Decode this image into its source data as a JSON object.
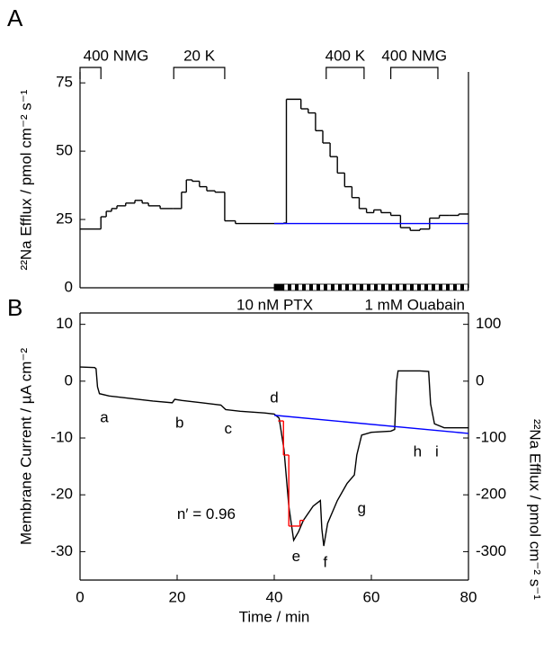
{
  "chart_data": [
    {
      "type": "step",
      "panel": "A",
      "ylabel": "²²Na Efflux / pmol cm⁻² s⁻¹",
      "xlim": [
        0,
        80
      ],
      "ylim": [
        0,
        79
      ],
      "yticks": [
        0,
        25,
        50,
        75
      ],
      "series": [
        {
          "color": "#000000",
          "bins": [
            0,
            4.3,
            5.4,
            6.5,
            7.6,
            9.4,
            11.3,
            12.8,
            14.1,
            16.5,
            19.1,
            20.9,
            21.9,
            23.1,
            24.6,
            26.1,
            27.8,
            29.8,
            32,
            41.9,
            42.5,
            45.5,
            47,
            48.5,
            50,
            51.5,
            53,
            54.5,
            56,
            57.5,
            59,
            60.5,
            62,
            64,
            66,
            68,
            70,
            72,
            74,
            76,
            78,
            80
          ],
          "values": [
            21.5,
            26,
            28,
            29,
            30,
            31,
            32,
            31,
            30,
            29,
            29,
            35,
            39.5,
            39,
            37,
            35.5,
            35,
            24.5,
            23.5,
            23.7,
            69,
            65.5,
            64,
            57.5,
            53,
            48,
            42,
            37,
            33,
            29,
            27.5,
            28.5,
            27.5,
            26.5,
            22,
            21,
            21.5,
            25.5,
            26.5,
            26.5,
            27
          ]
        },
        {
          "color": "#0000ff",
          "bins": [
            40,
            80
          ],
          "values": [
            23.5
          ]
        }
      ],
      "brackets": [
        {
          "label": "400 NMG",
          "start": 0,
          "end": 4.3
        },
        {
          "label": "20 K",
          "start": 19.3,
          "end": 29.8
        },
        {
          "label": "400 K",
          "start": 50.7,
          "end": 58.5
        },
        {
          "label": "400 NMG",
          "start": 64,
          "end": 73.7
        }
      ],
      "treatments": [
        {
          "label": "10 nM PTX",
          "start": 40,
          "end": 42,
          "fill": "#000000"
        },
        {
          "label": "1 mM Ouabain",
          "start": 42,
          "end": 80,
          "fill": "checker"
        }
      ]
    },
    {
      "type": "line",
      "panel": "B",
      "xlabel": "Time / min",
      "ylabel": "Membrane Current / µA cm⁻²",
      "y2label": "²²Na Efflux / pmol cm⁻² s⁻¹",
      "xlim": [
        0,
        80
      ],
      "xticks": [
        0,
        20,
        40,
        60,
        80
      ],
      "ylim": [
        -35,
        12
      ],
      "yticks": [
        -30,
        -20,
        -10,
        0,
        10
      ],
      "y2lim": [
        -350,
        120
      ],
      "y2ticks": [
        -300,
        -200,
        -100,
        0,
        100
      ],
      "series": [
        {
          "color": "#000000",
          "x": [
            0,
            3,
            3.3,
            3.6,
            4,
            6,
            10,
            15,
            19,
            19.5,
            21,
            25,
            29,
            30,
            33,
            38,
            40,
            41,
            42,
            43,
            44,
            45,
            46,
            48,
            49.5,
            49.8,
            50.2,
            51,
            53,
            55,
            56.5,
            57,
            58,
            60,
            64,
            64.8,
            65.2,
            65.5,
            70,
            71.8,
            72.2,
            73,
            75,
            80
          ],
          "values": [
            2.5,
            2.4,
            2.2,
            -1,
            -2.2,
            -2.6,
            -3,
            -3.5,
            -3.8,
            -3.2,
            -3.4,
            -3.8,
            -4.2,
            -5,
            -5.3,
            -5.6,
            -5.8,
            -6.5,
            -12,
            -22,
            -28,
            -26.5,
            -24.5,
            -22,
            -21,
            -26,
            -29,
            -25,
            -21,
            -18,
            -16.5,
            -13,
            -9.5,
            -9,
            -8.8,
            -8.5,
            0,
            1.8,
            1.8,
            1.7,
            -4,
            -7.5,
            -8.2,
            -8.2
          ]
        },
        {
          "color": "#0000ff",
          "x": [
            40,
            80
          ],
          "values": [
            -6,
            -9.2
          ]
        },
        {
          "type": "step",
          "axis": "y2",
          "color": "#ff0000",
          "bins": [
            40.8,
            41.9,
            43,
            45.3,
            46.2
          ],
          "values": [
            -70,
            -130,
            -255,
            -245
          ]
        }
      ],
      "annotations": [
        {
          "text": "a",
          "x": 5,
          "y": -6.5
        },
        {
          "text": "b",
          "x": 20.5,
          "y": -7.5
        },
        {
          "text": "c",
          "x": 30.5,
          "y": -8.5
        },
        {
          "text": "d",
          "x": 40,
          "y": -3
        },
        {
          "text": "e",
          "x": 44.5,
          "y": -31
        },
        {
          "text": "f",
          "x": 50.5,
          "y": -32
        },
        {
          "text": "g",
          "x": 58,
          "y": -22.5
        },
        {
          "text": "h",
          "x": 69.5,
          "y": -12.5
        },
        {
          "text": "i",
          "x": 73.5,
          "y": -12.5
        },
        {
          "text": "n′ = 0.96",
          "x": 26,
          "y": -23.5
        }
      ]
    }
  ]
}
